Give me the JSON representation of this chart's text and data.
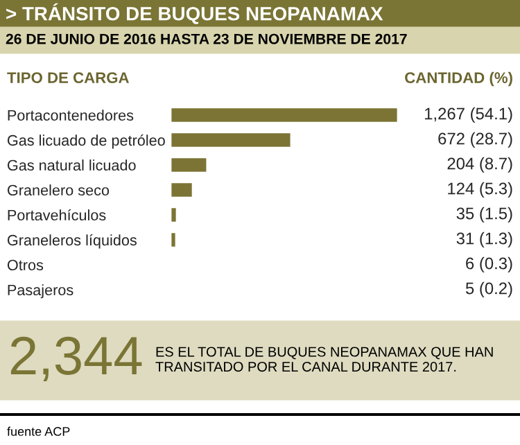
{
  "chart_data": {
    "type": "bar",
    "orientation": "horizontal",
    "title": "> TRÁNSITO DE BUQUES NEOPANAMAX",
    "subtitle": "26 DE JUNIO DE 2016 HASTA 23 DE NOVIEMBRE DE 2017",
    "categories": [
      "Portacontenedores",
      "Gas licuado de petróleo",
      "Gas natural licuado",
      "Granelero seco",
      "Portavehículos",
      "Graneleros líquidos",
      "Otros",
      "Pasajeros"
    ],
    "values": [
      1267,
      672,
      204,
      124,
      35,
      31,
      6,
      5
    ],
    "value_labels": [
      "1,267 (54.1)",
      "672 (28.7)",
      "204 (8.7)",
      "124 (5.3)",
      "35 (1.5)",
      "31 (1.3)",
      "6 (0.3)",
      "5 (0.2)"
    ],
    "color": "#7b7434",
    "tick_labels": "y",
    "grid": false,
    "legend": false,
    "annotations": [
      "TIPO DE CARGA",
      "CANTIDAD (%)",
      "2,344",
      "ES EL TOTAL DE BUQUES NEOPANAMAX QUE HAN TRANSITADO POR EL CANAL DURANTE 2017.",
      "fuente ACP"
    ]
  }
}
